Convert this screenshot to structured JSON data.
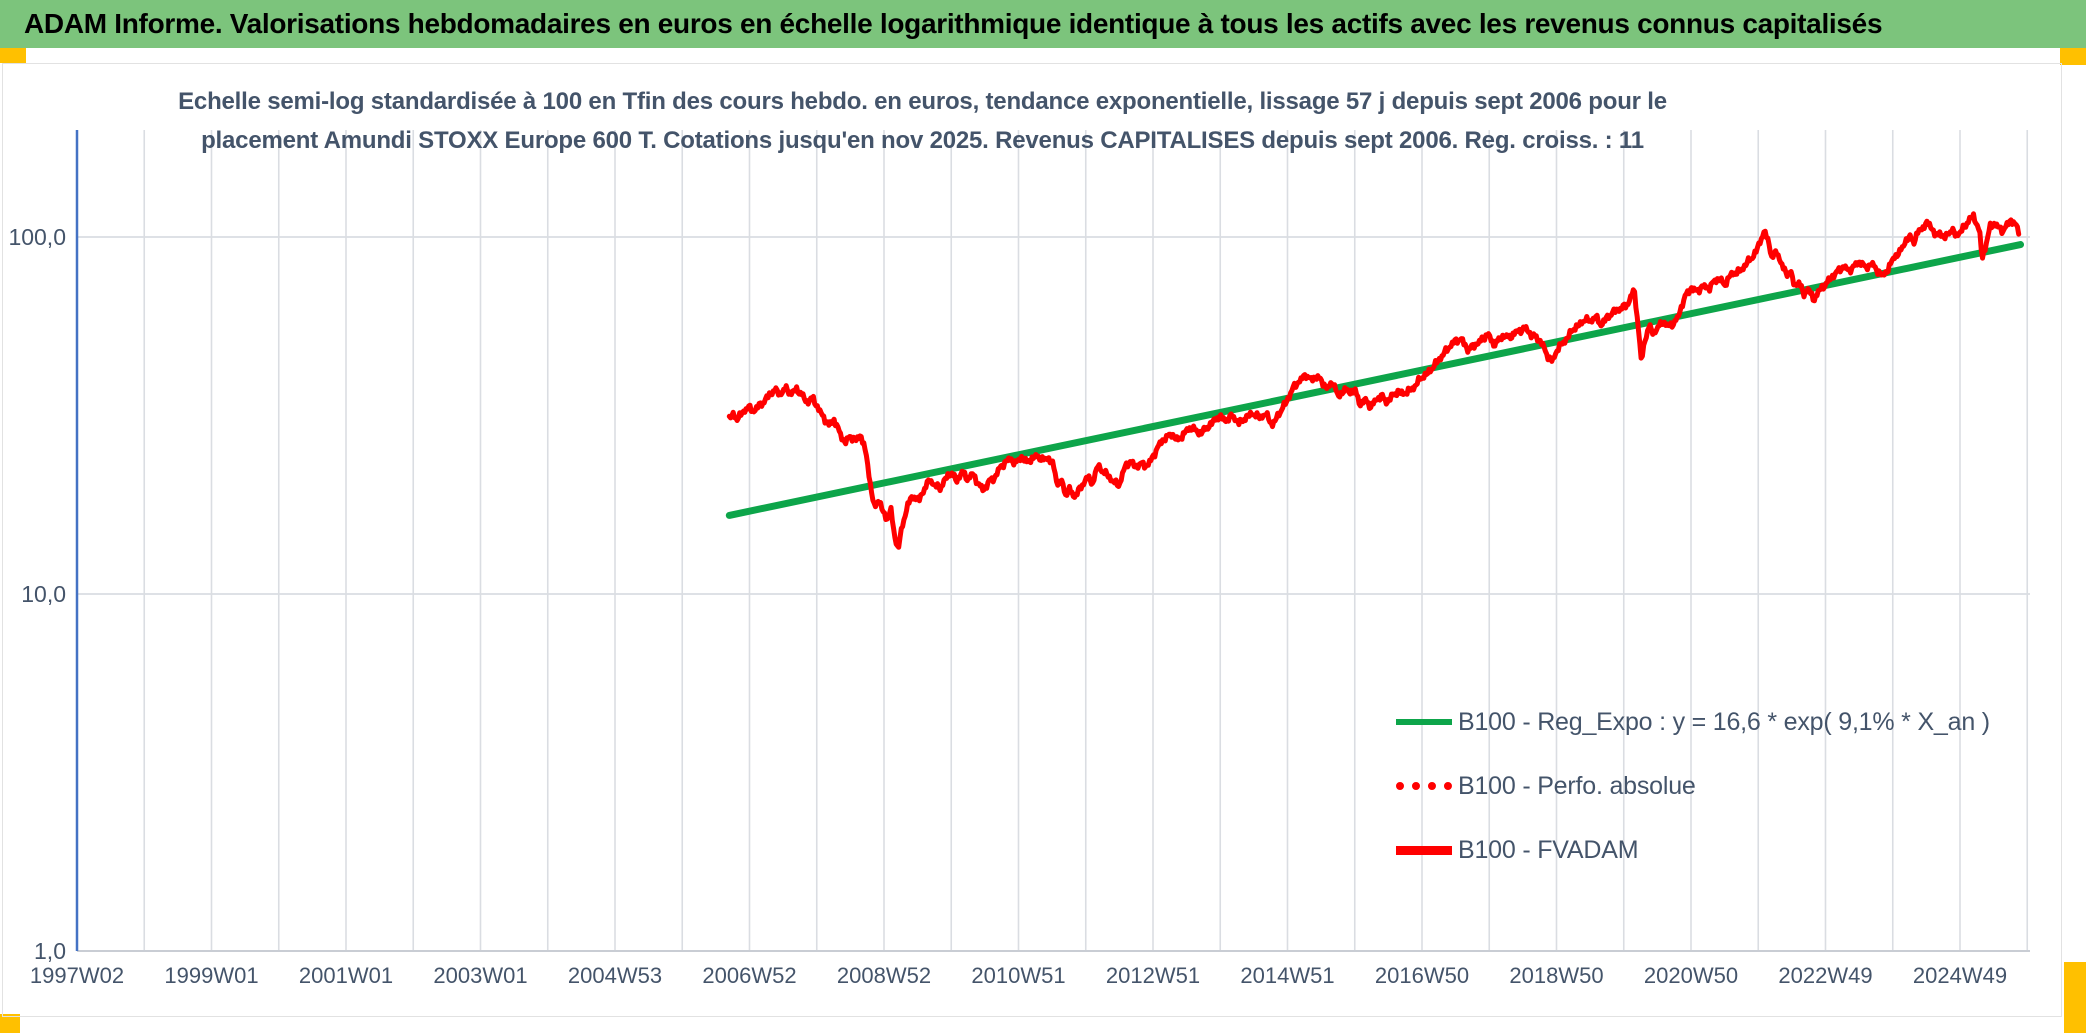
{
  "header": {
    "title": "ADAM Informe. Valorisations hebdomadaires en euros en échelle logarithmique identique à tous les actifs avec les revenus connus capitalisés",
    "bg_color": "#7cc47c",
    "accent_color": "#ffc000"
  },
  "chart_data": {
    "type": "line",
    "title_line1": "Echelle semi-log standardisée à 100 en Tfin des cours hebdo. en euros, tendance exponentielle, lissage 57 j depuis sept 2006 pour le",
    "title_line2": "placement Amundi STOXX Europe 600 T. Cotations jusqu'en nov 2025. Revenus CAPITALISES depuis sept 2006. Reg. croiss. : 11",
    "title_color": "#44546a",
    "y_axis": {
      "scale": "log",
      "tick_labels": [
        "100,0",
        "10,0",
        "1,0"
      ],
      "tick_values": [
        100,
        10,
        1
      ],
      "ylim": [
        1,
        196
      ],
      "axis_line_color": "#4472c4"
    },
    "x_axis": {
      "tick_labels": [
        "1997W02",
        "1999W01",
        "2001W01",
        "2003W01",
        "2004W53",
        "2006W52",
        "2008W52",
        "2010W51",
        "2012W51",
        "2014W51",
        "2016W50",
        "2018W50",
        "2020W50",
        "2022W49",
        "2024W49"
      ],
      "tick_interval_years": 2,
      "gridline_every_years": 1,
      "range_years": [
        1997.02,
        2026.0
      ]
    },
    "grid": true,
    "legend_position": "inside-right-center",
    "legend": [
      {
        "label": "B100 - Reg_Expo : y = 16,6 * exp( 9,1% *  X_an )",
        "color": "#0da54a",
        "style": "solid"
      },
      {
        "label": "B100 - Perfo. absolue",
        "color": "#ff0000",
        "style": "dotted"
      },
      {
        "label": "B100 - FVADAM",
        "color": "#ff0000",
        "style": "solid"
      }
    ],
    "series": [
      {
        "name": "B100 - Reg_Expo",
        "type": "exponential_trend",
        "base_value": 16.6,
        "annual_growth_rate_pct": 9.1,
        "start_year": 2006.72,
        "end_year": 2025.92,
        "color": "#0da54a"
      },
      {
        "name": "B100 - Perfo. absolue",
        "type": "line",
        "color": "#ff0000",
        "style": "dotted",
        "note": "coincides with B100 - FVADAM, hidden behind the solid line"
      },
      {
        "name": "B100 - FVADAM",
        "type": "line",
        "color": "#ff0000",
        "apparent_weekly_volatility_pct": 1.2,
        "keypoints": [
          [
            2006.72,
            31.0
          ],
          [
            2006.78,
            31.8
          ],
          [
            2006.84,
            30.9
          ],
          [
            2006.92,
            32.3
          ],
          [
            2007.0,
            33.4
          ],
          [
            2007.08,
            32.5
          ],
          [
            2007.16,
            33.7
          ],
          [
            2007.24,
            34.6
          ],
          [
            2007.32,
            36.3
          ],
          [
            2007.4,
            37.3
          ],
          [
            2007.48,
            36.3
          ],
          [
            2007.56,
            37.7
          ],
          [
            2007.64,
            36.4
          ],
          [
            2007.72,
            37.5
          ],
          [
            2007.8,
            36.1
          ],
          [
            2007.88,
            34.4
          ],
          [
            2007.96,
            35.5
          ],
          [
            2008.04,
            33.1
          ],
          [
            2008.12,
            31.3
          ],
          [
            2008.2,
            29.7
          ],
          [
            2008.28,
            30.8
          ],
          [
            2008.36,
            28.3
          ],
          [
            2008.44,
            26.5
          ],
          [
            2008.52,
            27.7
          ],
          [
            2008.6,
            26.9
          ],
          [
            2008.68,
            27.9
          ],
          [
            2008.76,
            24.3
          ],
          [
            2008.82,
            20.1
          ],
          [
            2008.88,
            17.3
          ],
          [
            2008.94,
            18.5
          ],
          [
            2009.0,
            17.1
          ],
          [
            2009.06,
            16.1
          ],
          [
            2009.12,
            17.3
          ],
          [
            2009.18,
            14.4
          ],
          [
            2009.23,
            13.4
          ],
          [
            2009.3,
            15.7
          ],
          [
            2009.38,
            18.0
          ],
          [
            2009.46,
            18.8
          ],
          [
            2009.54,
            18.3
          ],
          [
            2009.62,
            19.7
          ],
          [
            2009.7,
            20.9
          ],
          [
            2009.78,
            20.1
          ],
          [
            2009.86,
            19.8
          ],
          [
            2009.94,
            21.1
          ],
          [
            2010.02,
            21.9
          ],
          [
            2010.1,
            20.7
          ],
          [
            2010.18,
            22.0
          ],
          [
            2010.26,
            21.0
          ],
          [
            2010.34,
            21.7
          ],
          [
            2010.42,
            20.4
          ],
          [
            2010.5,
            19.5
          ],
          [
            2010.58,
            20.7
          ],
          [
            2010.66,
            21.1
          ],
          [
            2010.74,
            22.5
          ],
          [
            2010.82,
            23.4
          ],
          [
            2010.9,
            23.9
          ],
          [
            2010.98,
            23.2
          ],
          [
            2011.06,
            24.2
          ],
          [
            2011.14,
            23.4
          ],
          [
            2011.22,
            23.9
          ],
          [
            2011.3,
            24.4
          ],
          [
            2011.38,
            23.7
          ],
          [
            2011.46,
            24.1
          ],
          [
            2011.54,
            22.9
          ],
          [
            2011.6,
            20.3
          ],
          [
            2011.66,
            20.7
          ],
          [
            2011.72,
            19.0
          ],
          [
            2011.78,
            19.7
          ],
          [
            2011.84,
            18.7
          ],
          [
            2011.9,
            19.3
          ],
          [
            2011.96,
            20.0
          ],
          [
            2012.04,
            21.3
          ],
          [
            2012.12,
            20.4
          ],
          [
            2012.2,
            22.9
          ],
          [
            2012.28,
            22.0
          ],
          [
            2012.36,
            21.4
          ],
          [
            2012.44,
            20.5
          ],
          [
            2012.52,
            20.2
          ],
          [
            2012.6,
            22.7
          ],
          [
            2012.68,
            23.5
          ],
          [
            2012.76,
            22.7
          ],
          [
            2012.84,
            23.2
          ],
          [
            2012.92,
            22.8
          ],
          [
            2013.0,
            23.8
          ],
          [
            2013.1,
            26.0
          ],
          [
            2013.2,
            27.4
          ],
          [
            2013.3,
            28.0
          ],
          [
            2013.4,
            26.9
          ],
          [
            2013.5,
            28.5
          ],
          [
            2013.6,
            29.3
          ],
          [
            2013.7,
            28.2
          ],
          [
            2013.8,
            28.9
          ],
          [
            2013.9,
            30.2
          ],
          [
            2014.0,
            31.5
          ],
          [
            2014.1,
            30.6
          ],
          [
            2014.2,
            31.6
          ],
          [
            2014.3,
            30.1
          ],
          [
            2014.4,
            31.2
          ],
          [
            2014.5,
            32.1
          ],
          [
            2014.6,
            31.2
          ],
          [
            2014.7,
            31.9
          ],
          [
            2014.8,
            29.7
          ],
          [
            2014.9,
            32.2
          ],
          [
            2015.0,
            34.4
          ],
          [
            2015.1,
            37.7
          ],
          [
            2015.2,
            39.6
          ],
          [
            2015.3,
            41.1
          ],
          [
            2015.38,
            39.7
          ],
          [
            2015.46,
            40.9
          ],
          [
            2015.54,
            39.0
          ],
          [
            2015.62,
            37.7
          ],
          [
            2015.7,
            39.3
          ],
          [
            2015.78,
            35.4
          ],
          [
            2015.86,
            37.5
          ],
          [
            2015.94,
            36.7
          ],
          [
            2016.02,
            37.3
          ],
          [
            2016.1,
            34.0
          ],
          [
            2016.18,
            35.0
          ],
          [
            2016.26,
            33.4
          ],
          [
            2016.34,
            35.1
          ],
          [
            2016.42,
            35.9
          ],
          [
            2016.5,
            34.4
          ],
          [
            2016.58,
            36.0
          ],
          [
            2016.66,
            36.9
          ],
          [
            2016.74,
            36.4
          ],
          [
            2016.82,
            37.0
          ],
          [
            2016.9,
            37.9
          ],
          [
            2017.0,
            40.2
          ],
          [
            2017.1,
            41.4
          ],
          [
            2017.2,
            43.6
          ],
          [
            2017.3,
            46.0
          ],
          [
            2017.4,
            48.6
          ],
          [
            2017.5,
            50.9
          ],
          [
            2017.6,
            51.9
          ],
          [
            2017.7,
            48.4
          ],
          [
            2017.8,
            49.7
          ],
          [
            2017.9,
            51.3
          ],
          [
            2018.0,
            53.7
          ],
          [
            2018.08,
            49.9
          ],
          [
            2018.16,
            51.4
          ],
          [
            2018.24,
            53.0
          ],
          [
            2018.32,
            52.2
          ],
          [
            2018.4,
            53.9
          ],
          [
            2018.48,
            54.7
          ],
          [
            2018.56,
            55.6
          ],
          [
            2018.64,
            53.3
          ],
          [
            2018.72,
            52.4
          ],
          [
            2018.8,
            50.5
          ],
          [
            2018.88,
            46.7
          ],
          [
            2018.96,
            44.8
          ],
          [
            2019.04,
            48.8
          ],
          [
            2019.12,
            50.5
          ],
          [
            2019.2,
            52.9
          ],
          [
            2019.28,
            55.5
          ],
          [
            2019.36,
            56.6
          ],
          [
            2019.44,
            58.9
          ],
          [
            2019.52,
            57.9
          ],
          [
            2019.6,
            59.9
          ],
          [
            2019.68,
            56.7
          ],
          [
            2019.76,
            59.1
          ],
          [
            2019.84,
            61.1
          ],
          [
            2019.92,
            62.5
          ],
          [
            2020.0,
            63.4
          ],
          [
            2020.08,
            64.8
          ],
          [
            2020.14,
            69.1
          ],
          [
            2020.18,
            70.4
          ],
          [
            2020.24,
            55.0
          ],
          [
            2020.28,
            44.8
          ],
          [
            2020.34,
            52.1
          ],
          [
            2020.4,
            56.3
          ],
          [
            2020.46,
            53.7
          ],
          [
            2020.52,
            55.5
          ],
          [
            2020.6,
            57.9
          ],
          [
            2020.68,
            56.2
          ],
          [
            2020.76,
            57.3
          ],
          [
            2020.82,
            59.1
          ],
          [
            2020.88,
            64.1
          ],
          [
            2020.94,
            68.6
          ],
          [
            2021.02,
            71.9
          ],
          [
            2021.1,
            70.5
          ],
          [
            2021.2,
            72.7
          ],
          [
            2021.3,
            72.0
          ],
          [
            2021.36,
            75.1
          ],
          [
            2021.44,
            76.7
          ],
          [
            2021.52,
            73.1
          ],
          [
            2021.6,
            78.0
          ],
          [
            2021.68,
            79.5
          ],
          [
            2021.76,
            80.2
          ],
          [
            2021.84,
            84.3
          ],
          [
            2021.92,
            87.1
          ],
          [
            2022.0,
            92.1
          ],
          [
            2022.05,
            97.1
          ],
          [
            2022.1,
            103.6
          ],
          [
            2022.16,
            99.1
          ],
          [
            2022.22,
            88.1
          ],
          [
            2022.3,
            90.6
          ],
          [
            2022.36,
            84.6
          ],
          [
            2022.44,
            78.4
          ],
          [
            2022.5,
            80.6
          ],
          [
            2022.56,
            72.3
          ],
          [
            2022.62,
            75.2
          ],
          [
            2022.7,
            68.8
          ],
          [
            2022.76,
            72.1
          ],
          [
            2022.84,
            66.6
          ],
          [
            2022.92,
            70.5
          ],
          [
            2023.0,
            73.0
          ],
          [
            2023.1,
            76.7
          ],
          [
            2023.2,
            80.2
          ],
          [
            2023.3,
            82.8
          ],
          [
            2023.36,
            80.2
          ],
          [
            2023.44,
            82.8
          ],
          [
            2023.54,
            85.4
          ],
          [
            2023.62,
            81.7
          ],
          [
            2023.7,
            84.4
          ],
          [
            2023.8,
            80.2
          ],
          [
            2023.87,
            77.7
          ],
          [
            2023.96,
            81.7
          ],
          [
            2024.04,
            88.1
          ],
          [
            2024.12,
            90.1
          ],
          [
            2024.2,
            96.9
          ],
          [
            2024.28,
            100.1
          ],
          [
            2024.34,
            96.9
          ],
          [
            2024.4,
            103.6
          ],
          [
            2024.48,
            107.1
          ],
          [
            2024.56,
            109.6
          ],
          [
            2024.62,
            104.1
          ],
          [
            2024.66,
            100.1
          ],
          [
            2024.72,
            103.6
          ],
          [
            2024.78,
            98.6
          ],
          [
            2024.84,
            102.6
          ],
          [
            2024.9,
            104.4
          ],
          [
            2024.96,
            101.1
          ],
          [
            2025.04,
            103.8
          ],
          [
            2025.1,
            107.6
          ],
          [
            2025.16,
            112.1
          ],
          [
            2025.22,
            114.1
          ],
          [
            2025.27,
            109.1
          ],
          [
            2025.31,
            103.6
          ],
          [
            2025.35,
            87.1
          ],
          [
            2025.4,
            94.1
          ],
          [
            2025.47,
            107.1
          ],
          [
            2025.53,
            109.1
          ],
          [
            2025.6,
            106.1
          ],
          [
            2025.66,
            104.1
          ],
          [
            2025.72,
            108.1
          ],
          [
            2025.78,
            111.6
          ],
          [
            2025.83,
            109.1
          ],
          [
            2025.87,
            106.1
          ],
          [
            2025.9,
            103.1
          ]
        ]
      }
    ],
    "colors": {
      "grid": "#dadde2",
      "tick_text": "#44546a",
      "bottom_axis": "#c9cdd4"
    }
  }
}
